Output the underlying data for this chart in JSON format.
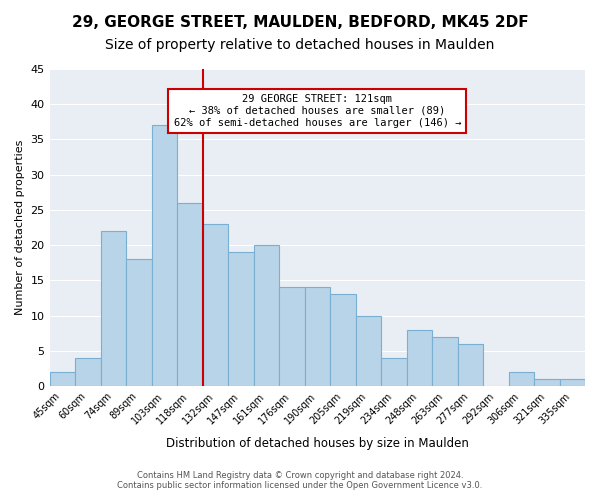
{
  "title": "29, GEORGE STREET, MAULDEN, BEDFORD, MK45 2DF",
  "subtitle": "Size of property relative to detached houses in Maulden",
  "xlabel": "Distribution of detached houses by size in Maulden",
  "ylabel": "Number of detached properties",
  "categories": [
    "45sqm",
    "60sqm",
    "74sqm",
    "89sqm",
    "103sqm",
    "118sqm",
    "132sqm",
    "147sqm",
    "161sqm",
    "176sqm",
    "190sqm",
    "205sqm",
    "219sqm",
    "234sqm",
    "248sqm",
    "263sqm",
    "277sqm",
    "292sqm",
    "306sqm",
    "321sqm",
    "335sqm"
  ],
  "values": [
    2,
    4,
    22,
    18,
    37,
    26,
    23,
    19,
    20,
    14,
    14,
    13,
    10,
    4,
    8,
    7,
    6,
    0,
    2,
    1,
    1
  ],
  "bar_color": "#b8d4e8",
  "bar_edge_color": "#7aafd4",
  "vline_x": 5.0,
  "vline_color": "#cc0000",
  "annotation_title": "29 GEORGE STREET: 121sqm",
  "annotation_line1": "← 38% of detached houses are smaller (89)",
  "annotation_line2": "62% of semi-detached houses are larger (146) →",
  "annotation_box_color": "#ffffff",
  "annotation_box_edge": "#cc0000",
  "ylim": [
    0,
    45
  ],
  "yticks": [
    0,
    5,
    10,
    15,
    20,
    25,
    30,
    35,
    40,
    45
  ],
  "bg_color": "#e8eef4",
  "footer_line1": "Contains HM Land Registry data © Crown copyright and database right 2024.",
  "footer_line2": "Contains public sector information licensed under the Open Government Licence v3.0.",
  "title_fontsize": 11,
  "subtitle_fontsize": 10
}
